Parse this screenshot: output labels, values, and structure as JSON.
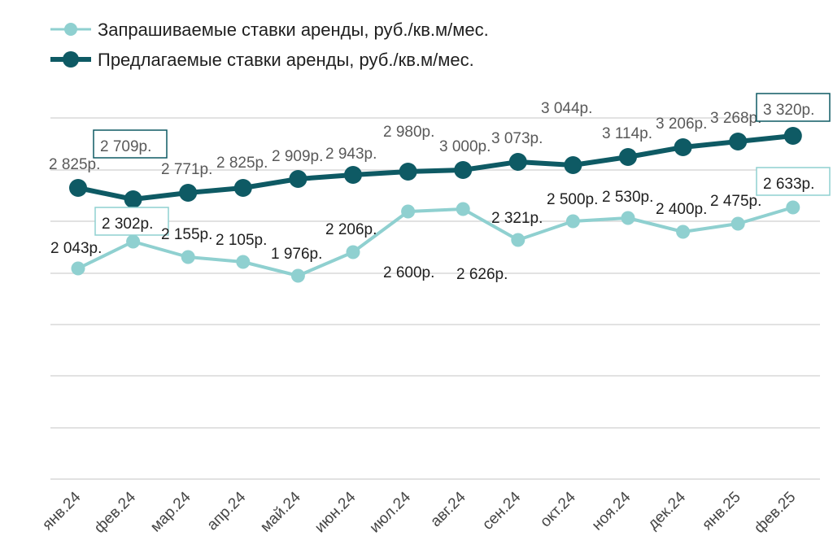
{
  "chart_data": {
    "type": "line",
    "categories": [
      "янв.24",
      "фев.24",
      "мар.24",
      "апр.24",
      "май.24",
      "июн.24",
      "июл.24",
      "авг.24",
      "сен.24",
      "окт.24",
      "ноя.24",
      "дек.24",
      "янв.25",
      "фев.25"
    ],
    "series": [
      {
        "name": "Запрашиваемые ставки аренды, руб./кв.м/мес.",
        "values": [
          2043,
          2302,
          2155,
          2105,
          1976,
          2206,
          2600,
          2626,
          2321,
          2500,
          2530,
          2400,
          2475,
          2633
        ],
        "labels": [
          "2 043р.",
          "2 302р.",
          "2 155р.",
          "2 105р.",
          "1 976р.",
          "2 206р.",
          "2 600р.",
          "2 626р.",
          "2 321р.",
          "2 500р.",
          "2 530р.",
          "2 400р.",
          "2 475р.",
          "2 633р."
        ],
        "color": "#8fd0d0"
      },
      {
        "name": "Предлагаемые ставки аренды, руб./кв.м/мес.",
        "values": [
          2825,
          2709,
          2771,
          2825,
          2909,
          2943,
          2980,
          3000,
          3073,
          3044,
          3114,
          3206,
          3268,
          3320
        ],
        "labels": [
          "2 825р.",
          "2 709р.",
          "2 771р.",
          "2 825р.",
          "2 909р.",
          "2 943р.",
          "2 980р.",
          "3 000р.",
          "3 073р.",
          "3 044р.",
          "3 114р.",
          "3 206р.",
          "3 268р.",
          "3 320р."
        ],
        "color": "#0e5a64"
      }
    ],
    "highlighted_labels": [
      "2 709р.",
      "3 320р.",
      "2 302р.",
      "2 633р."
    ],
    "legend_position": "top-left",
    "grid": true
  }
}
